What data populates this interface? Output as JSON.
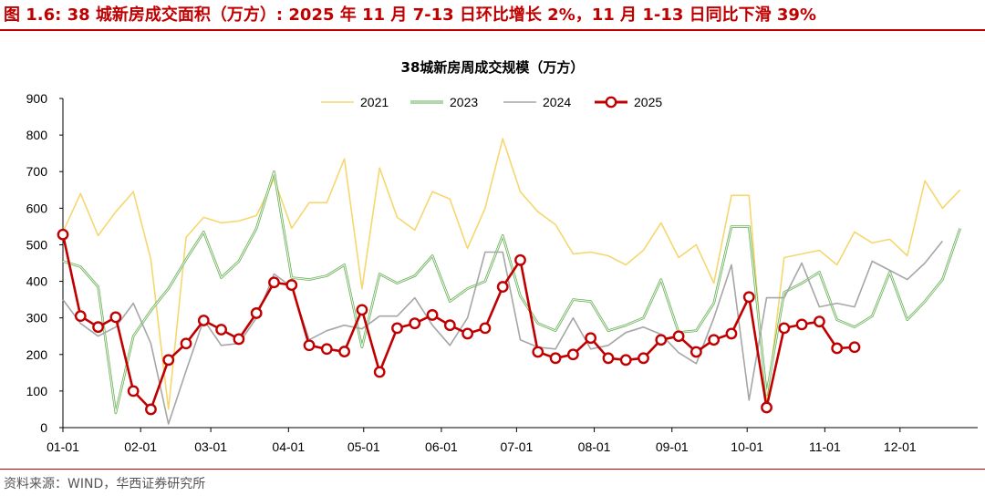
{
  "figure_title": "图 1.6:  38 城新房成交面积（万方）: 2025 年 11 月 7-13 日环比增长 2%，11 月 1-13 日同比下滑 39%",
  "source": "资料来源：WIND，华西证券研究所",
  "colors": {
    "accent": "#c00000",
    "s2021": "#f5d76e",
    "s2023": "#9bd48a",
    "s2024": "#a6a6a6",
    "s2025": "#c00000"
  },
  "chart_data": {
    "type": "line",
    "title": "38城新房周成交规模（万方）",
    "xlabel": "",
    "ylabel": "",
    "ylim": [
      0,
      900
    ],
    "yticks": [
      0,
      100,
      200,
      300,
      400,
      500,
      600,
      700,
      800,
      900
    ],
    "x_ticks": [
      "01-01",
      "02-01",
      "03-01",
      "04-01",
      "05-01",
      "06-01",
      "07-01",
      "08-01",
      "09-01",
      "10-01",
      "11-01",
      "12-01"
    ],
    "x_unit": "week of year",
    "grid": false,
    "legend": "top-center",
    "series": [
      {
        "name": "2021",
        "values": [
          535,
          640,
          525,
          590,
          645,
          460,
          50,
          520,
          575,
          560,
          565,
          580,
          680,
          545,
          615,
          615,
          735,
          380,
          710,
          575,
          540,
          645,
          625,
          490,
          600,
          790,
          645,
          590,
          555,
          475,
          480,
          470,
          445,
          485,
          560,
          465,
          500,
          395,
          635,
          635,
          60,
          465,
          475,
          485,
          445,
          535,
          505,
          515,
          470,
          675,
          600,
          650
        ]
      },
      {
        "name": "2023",
        "values": [
          455,
          440,
          385,
          40,
          250,
          320,
          380,
          460,
          535,
          410,
          455,
          545,
          700,
          410,
          405,
          415,
          445,
          220,
          420,
          395,
          415,
          470,
          345,
          380,
          400,
          525,
          360,
          285,
          265,
          350,
          345,
          265,
          280,
          300,
          405,
          260,
          265,
          340,
          550,
          550,
          90,
          370,
          395,
          425,
          295,
          275,
          305,
          425,
          295,
          345,
          405,
          545
        ]
      },
      {
        "name": "2024",
        "values": [
          350,
          285,
          250,
          275,
          340,
          230,
          10,
          155,
          295,
          225,
          230,
          300,
          420,
          385,
          240,
          265,
          280,
          270,
          305,
          305,
          355,
          280,
          225,
          300,
          480,
          480,
          240,
          220,
          215,
          300,
          215,
          225,
          260,
          275,
          255,
          205,
          175,
          300,
          445,
          75,
          355,
          355,
          450,
          330,
          340,
          330,
          455,
          430,
          405,
          450,
          510
        ]
      },
      {
        "name": "2025",
        "values": [
          528,
          305,
          275,
          302,
          100,
          50,
          185,
          230,
          293,
          268,
          242,
          313,
          397,
          390,
          225,
          215,
          208,
          322,
          152,
          272,
          285,
          308,
          280,
          257,
          272,
          385,
          458,
          207,
          190,
          200,
          245,
          190,
          185,
          190,
          240,
          250,
          207,
          240,
          257,
          357,
          55,
          272,
          282,
          290,
          217,
          220
        ]
      }
    ]
  }
}
